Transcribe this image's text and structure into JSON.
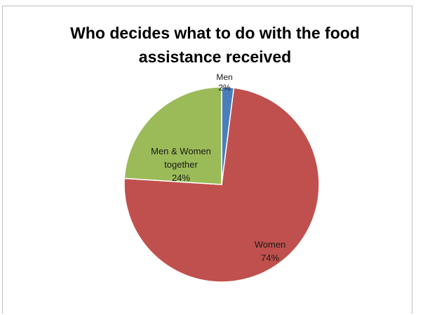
{
  "chart_data": {
    "type": "pie",
    "title": [
      "Who decides what to do with the food",
      "assistance received"
    ],
    "slices": [
      {
        "label": [
          "Men",
          "2%"
        ],
        "value": 2,
        "color": "#4a7ebb"
      },
      {
        "label": [
          "Women",
          "74%"
        ],
        "value": 74,
        "color": "#c0504d"
      },
      {
        "label": [
          "Men & Women",
          "together",
          "24%"
        ],
        "value": 24,
        "color": "#9bbb59"
      }
    ],
    "start_angle_deg": 0,
    "direction": "clockwise",
    "legend": "none"
  }
}
